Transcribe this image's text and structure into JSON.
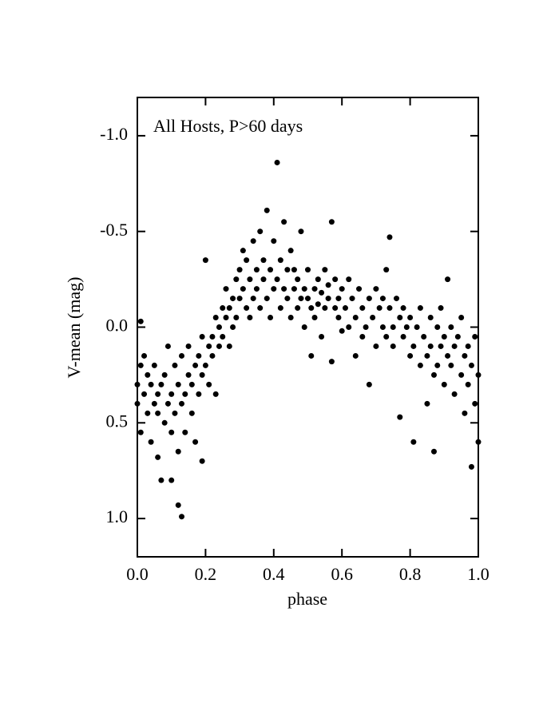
{
  "chart_data": {
    "type": "scatter",
    "annotation": "All Hosts, P>60 days",
    "xlabel": "phase",
    "ylabel": "V-mean (mag)",
    "xlim": [
      0,
      1
    ],
    "ylim": [
      1.2,
      -1.2
    ],
    "xticks": [
      {
        "value": 0,
        "label": "0.0"
      },
      {
        "value": 0.2,
        "label": "0.2"
      },
      {
        "value": 0.4,
        "label": "0.4"
      },
      {
        "value": 0.6,
        "label": "0.6"
      },
      {
        "value": 0.8,
        "label": "0.8"
      },
      {
        "value": 1,
        "label": "1.0"
      }
    ],
    "yticks": [
      {
        "value": -1,
        "label": "-1.0"
      },
      {
        "value": -0.5,
        "label": "-0.5"
      },
      {
        "value": 0,
        "label": "0.0"
      },
      {
        "value": 0.5,
        "label": "0.5"
      },
      {
        "value": 1,
        "label": "1.0"
      }
    ],
    "color": "#000000",
    "x": [
      0.0,
      0.0,
      0.01,
      0.01,
      0.01,
      0.02,
      0.02,
      0.03,
      0.03,
      0.04,
      0.04,
      0.05,
      0.05,
      0.06,
      0.06,
      0.06,
      0.07,
      0.07,
      0.08,
      0.08,
      0.09,
      0.09,
      0.1,
      0.1,
      0.1,
      0.11,
      0.11,
      0.12,
      0.12,
      0.12,
      0.13,
      0.13,
      0.13,
      0.14,
      0.14,
      0.15,
      0.15,
      0.16,
      0.16,
      0.17,
      0.17,
      0.18,
      0.18,
      0.19,
      0.19,
      0.19,
      0.2,
      0.2,
      0.21,
      0.21,
      0.22,
      0.22,
      0.23,
      0.23,
      0.24,
      0.24,
      0.25,
      0.25,
      0.26,
      0.26,
      0.27,
      0.27,
      0.28,
      0.28,
      0.29,
      0.29,
      0.3,
      0.3,
      0.31,
      0.31,
      0.32,
      0.32,
      0.33,
      0.33,
      0.34,
      0.34,
      0.35,
      0.35,
      0.36,
      0.36,
      0.37,
      0.37,
      0.38,
      0.38,
      0.39,
      0.39,
      0.4,
      0.4,
      0.41,
      0.41,
      0.42,
      0.42,
      0.43,
      0.43,
      0.44,
      0.44,
      0.45,
      0.45,
      0.46,
      0.46,
      0.47,
      0.47,
      0.48,
      0.48,
      0.49,
      0.49,
      0.5,
      0.5,
      0.51,
      0.51,
      0.52,
      0.52,
      0.53,
      0.53,
      0.54,
      0.54,
      0.55,
      0.55,
      0.56,
      0.56,
      0.57,
      0.57,
      0.58,
      0.58,
      0.59,
      0.59,
      0.6,
      0.6,
      0.61,
      0.62,
      0.62,
      0.63,
      0.64,
      0.64,
      0.65,
      0.66,
      0.66,
      0.67,
      0.68,
      0.68,
      0.69,
      0.7,
      0.7,
      0.71,
      0.72,
      0.72,
      0.73,
      0.73,
      0.74,
      0.74,
      0.75,
      0.75,
      0.76,
      0.77,
      0.77,
      0.78,
      0.78,
      0.79,
      0.8,
      0.8,
      0.81,
      0.81,
      0.82,
      0.83,
      0.83,
      0.84,
      0.85,
      0.85,
      0.86,
      0.86,
      0.87,
      0.87,
      0.88,
      0.88,
      0.89,
      0.89,
      0.9,
      0.9,
      0.91,
      0.91,
      0.92,
      0.92,
      0.93,
      0.93,
      0.94,
      0.95,
      0.95,
      0.96,
      0.96,
      0.97,
      0.97,
      0.98,
      0.98,
      0.99,
      0.99,
      1.0,
      1.0
    ],
    "values": [
      0.3,
      0.4,
      0.2,
      0.55,
      -0.03,
      0.35,
      0.15,
      0.25,
      0.45,
      0.3,
      0.6,
      0.4,
      0.2,
      0.45,
      0.68,
      0.35,
      0.8,
      0.3,
      0.5,
      0.25,
      0.4,
      0.1,
      0.55,
      0.35,
      0.8,
      0.45,
      0.2,
      0.3,
      0.65,
      0.93,
      0.99,
      0.4,
      0.15,
      0.35,
      0.55,
      0.25,
      0.1,
      0.45,
      0.3,
      0.2,
      0.6,
      0.15,
      0.35,
      0.25,
      0.7,
      0.05,
      0.2,
      -0.35,
      0.1,
      0.3,
      0.15,
      0.05,
      0.35,
      -0.05,
      0.0,
      0.1,
      -0.1,
      0.05,
      -0.05,
      -0.2,
      0.1,
      -0.1,
      -0.15,
      0.0,
      -0.25,
      -0.05,
      -0.3,
      -0.15,
      -0.4,
      -0.2,
      -0.1,
      -0.35,
      -0.25,
      -0.05,
      -0.45,
      -0.15,
      -0.3,
      -0.2,
      -0.5,
      -0.1,
      -0.25,
      -0.35,
      -0.61,
      -0.15,
      -0.3,
      -0.05,
      -0.2,
      -0.45,
      -0.86,
      -0.25,
      -0.35,
      -0.1,
      -0.55,
      -0.2,
      -0.3,
      -0.15,
      -0.4,
      -0.05,
      -0.2,
      -0.3,
      -0.1,
      -0.25,
      -0.15,
      -0.5,
      0.0,
      -0.2,
      -0.15,
      -0.3,
      -0.1,
      0.15,
      -0.2,
      -0.05,
      -0.25,
      -0.12,
      -0.18,
      0.05,
      -0.3,
      -0.1,
      -0.15,
      -0.22,
      -0.55,
      0.18,
      -0.1,
      -0.25,
      -0.05,
      -0.15,
      -0.2,
      0.02,
      -0.1,
      -0.25,
      0.0,
      -0.15,
      -0.05,
      0.15,
      -0.2,
      -0.1,
      0.05,
      0.0,
      -0.15,
      0.3,
      -0.05,
      -0.2,
      0.1,
      -0.1,
      0.0,
      -0.15,
      -0.3,
      0.05,
      -0.47,
      -0.1,
      0.0,
      0.1,
      -0.15,
      -0.05,
      0.47,
      0.05,
      -0.1,
      0.0,
      0.15,
      -0.05,
      0.1,
      0.6,
      0.0,
      0.2,
      -0.1,
      0.05,
      0.15,
      0.4,
      0.1,
      -0.05,
      0.65,
      0.25,
      0.0,
      0.2,
      0.1,
      -0.1,
      0.3,
      0.05,
      -0.25,
      0.15,
      0.2,
      0.0,
      0.1,
      0.35,
      0.05,
      0.25,
      -0.05,
      0.15,
      0.45,
      0.1,
      0.3,
      0.2,
      0.73,
      0.05,
      0.4,
      0.25,
      0.6
    ]
  }
}
